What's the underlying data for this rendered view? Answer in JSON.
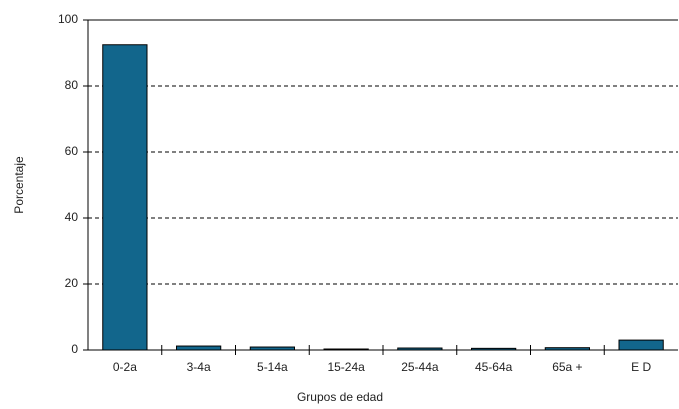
{
  "chart_data": {
    "type": "bar",
    "x_label": "Grupos de edad",
    "y_label": "Porcentaje",
    "categories": [
      "0-2a",
      "3-4a",
      "5-14a",
      "15-24a",
      "25-44a",
      "45-64a",
      "65a +",
      "E D"
    ],
    "values": [
      92.5,
      1.2,
      0.9,
      0.3,
      0.6,
      0.5,
      0.7,
      3
    ],
    "color": "#12668c",
    "ylim": [
      0,
      100
    ],
    "yticks": [
      0,
      20,
      40,
      60,
      80,
      100
    ],
    "grid": true
  }
}
